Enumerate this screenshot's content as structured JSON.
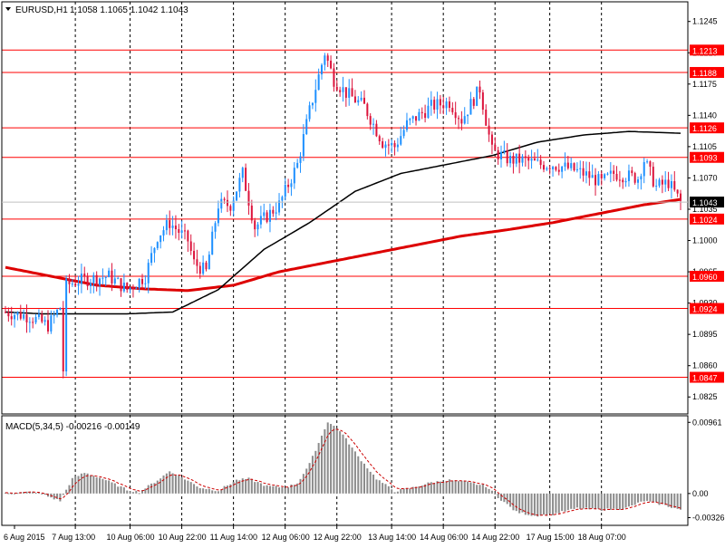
{
  "header": {
    "symbol": "EURUSD,H1",
    "ohlc": "1.1058 1.1065 1.1042 1.1043"
  },
  "macd_panel": {
    "label": "MACD(5,34,5) -0.00216 -0.00149",
    "ticks": [
      "0.00961",
      "0.00",
      "-0.00326"
    ],
    "tick_values": [
      0.00961,
      0.0,
      -0.00326
    ]
  },
  "chart_data": [
    {
      "type": "candlestick",
      "title": "EURUSD,H1",
      "ylim": [
        1.0806,
        1.1267
      ],
      "y_ticks": [
        "1.1245",
        "1.1210",
        "1.1175",
        "1.1140",
        "1.1105",
        "1.1070",
        "1.1035",
        "1.1000",
        "1.0965",
        "1.0930",
        "1.0895",
        "1.0860",
        "1.0825"
      ],
      "x_ticks": [
        "6 Aug 2015",
        "7 Aug 13:00",
        "10 Aug 06:00",
        "10 Aug 22:00",
        "11 Aug 14:00",
        "12 Aug 06:00",
        "12 Aug 22:00",
        "13 Aug 14:00",
        "14 Aug 06:00",
        "14 Aug 22:00",
        "17 Aug 15:00",
        "18 Aug 07:00"
      ],
      "last_price": "1.1043",
      "levels": [
        {
          "label": "1.1213",
          "value": 1.1213
        },
        {
          "label": "1.1188",
          "value": 1.1188
        },
        {
          "label": "1.1126",
          "value": 1.1126
        },
        {
          "label": "1.1093",
          "value": 1.1093
        },
        {
          "label": "1.1024",
          "value": 1.1024
        },
        {
          "label": "1.0960",
          "value": 1.096
        },
        {
          "label": "1.0924",
          "value": 1.0924
        },
        {
          "label": "1.0847",
          "value": 1.0847
        }
      ],
      "colors": {
        "up": "#1e90ff",
        "down": "#dc143c",
        "level": "#ff0000",
        "ma_fast": "#000000",
        "ma_slow": "#dd0000",
        "grid": "#000000"
      },
      "close_anchors": [
        [
          0,
          1.092
        ],
        [
          8,
          1.0915
        ],
        [
          14,
          1.0905
        ],
        [
          18,
          1.0925
        ],
        [
          19,
          1.0855
        ],
        [
          20,
          1.095
        ],
        [
          24,
          1.0955
        ],
        [
          34,
          1.096
        ],
        [
          40,
          1.0945
        ],
        [
          46,
          1.096
        ],
        [
          50,
          1.1005
        ],
        [
          54,
          1.102
        ],
        [
          60,
          1.1
        ],
        [
          62,
          1.0975
        ],
        [
          66,
          1.0965
        ],
        [
          70,
          1.104
        ],
        [
          74,
          1.104
        ],
        [
          78,
          1.1075
        ],
        [
          80,
          1.1045
        ],
        [
          82,
          1.1015
        ],
        [
          90,
          1.104
        ],
        [
          96,
          1.1085
        ],
        [
          100,
          1.1145
        ],
        [
          105,
          1.121
        ],
        [
          108,
          1.118
        ],
        [
          112,
          1.1165
        ],
        [
          118,
          1.115
        ],
        [
          124,
          1.111
        ],
        [
          128,
          1.1105
        ],
        [
          132,
          1.113
        ],
        [
          140,
          1.115
        ],
        [
          146,
          1.1155
        ],
        [
          150,
          1.1135
        ],
        [
          156,
          1.117
        ],
        [
          160,
          1.11
        ],
        [
          166,
          1.109
        ],
        [
          170,
          1.109
        ],
        [
          176,
          1.1085
        ],
        [
          180,
          1.1085
        ],
        [
          186,
          1.108
        ],
        [
          190,
          1.1075
        ],
        [
          196,
          1.1065
        ],
        [
          200,
          1.1075
        ],
        [
          208,
          1.107
        ],
        [
          210,
          1.109
        ],
        [
          214,
          1.106
        ],
        [
          218,
          1.1065
        ],
        [
          222,
          1.1043
        ]
      ],
      "ma_fast": [
        [
          0,
          1.092
        ],
        [
          12,
          1.0918
        ],
        [
          40,
          1.0918
        ],
        [
          55,
          1.092
        ],
        [
          70,
          1.0945
        ],
        [
          85,
          1.099
        ],
        [
          100,
          1.102
        ],
        [
          115,
          1.1055
        ],
        [
          130,
          1.1075
        ],
        [
          145,
          1.1085
        ],
        [
          160,
          1.1095
        ],
        [
          175,
          1.111
        ],
        [
          190,
          1.1118
        ],
        [
          205,
          1.1122
        ],
        [
          222,
          1.112
        ]
      ],
      "ma_slow": [
        [
          0,
          1.097
        ],
        [
          15,
          1.096
        ],
        [
          30,
          1.095
        ],
        [
          45,
          1.0946
        ],
        [
          60,
          1.0944
        ],
        [
          75,
          1.095
        ],
        [
          90,
          1.0965
        ],
        [
          105,
          1.0975
        ],
        [
          120,
          1.0985
        ],
        [
          135,
          1.0995
        ],
        [
          150,
          1.1005
        ],
        [
          165,
          1.1012
        ],
        [
          180,
          1.102
        ],
        [
          195,
          1.103
        ],
        [
          210,
          1.104
        ],
        [
          222,
          1.1046
        ]
      ]
    },
    {
      "type": "bar",
      "title": "MACD(5,34,5) -0.00216 -0.00149",
      "ylim": [
        -0.0043,
        0.0105
      ],
      "values": [
        [
          0,
          0.0001
        ],
        [
          10,
          0.0002
        ],
        [
          18,
          -0.001
        ],
        [
          22,
          0.002
        ],
        [
          26,
          0.0028
        ],
        [
          32,
          0.002
        ],
        [
          40,
          0.0005
        ],
        [
          44,
          0.0002
        ],
        [
          50,
          0.0018
        ],
        [
          54,
          0.003
        ],
        [
          58,
          0.0022
        ],
        [
          64,
          0.0008
        ],
        [
          70,
          0.0004
        ],
        [
          76,
          0.0018
        ],
        [
          80,
          0.002
        ],
        [
          86,
          0.001
        ],
        [
          92,
          0.0008
        ],
        [
          96,
          0.0014
        ],
        [
          100,
          0.004
        ],
        [
          106,
          0.0097
        ],
        [
          110,
          0.0085
        ],
        [
          116,
          0.005
        ],
        [
          122,
          0.002
        ],
        [
          128,
          0.0003
        ],
        [
          134,
          0.0008
        ],
        [
          140,
          0.0015
        ],
        [
          146,
          0.0018
        ],
        [
          152,
          0.0015
        ],
        [
          158,
          0.001
        ],
        [
          162,
          -0.0005
        ],
        [
          168,
          -0.0025
        ],
        [
          174,
          -0.003
        ],
        [
          180,
          -0.0028
        ],
        [
          188,
          -0.002
        ],
        [
          196,
          -0.0022
        ],
        [
          204,
          -0.002
        ],
        [
          210,
          -0.001
        ],
        [
          216,
          -0.0015
        ],
        [
          222,
          -0.0022
        ]
      ],
      "signal_last": -0.00149
    }
  ]
}
